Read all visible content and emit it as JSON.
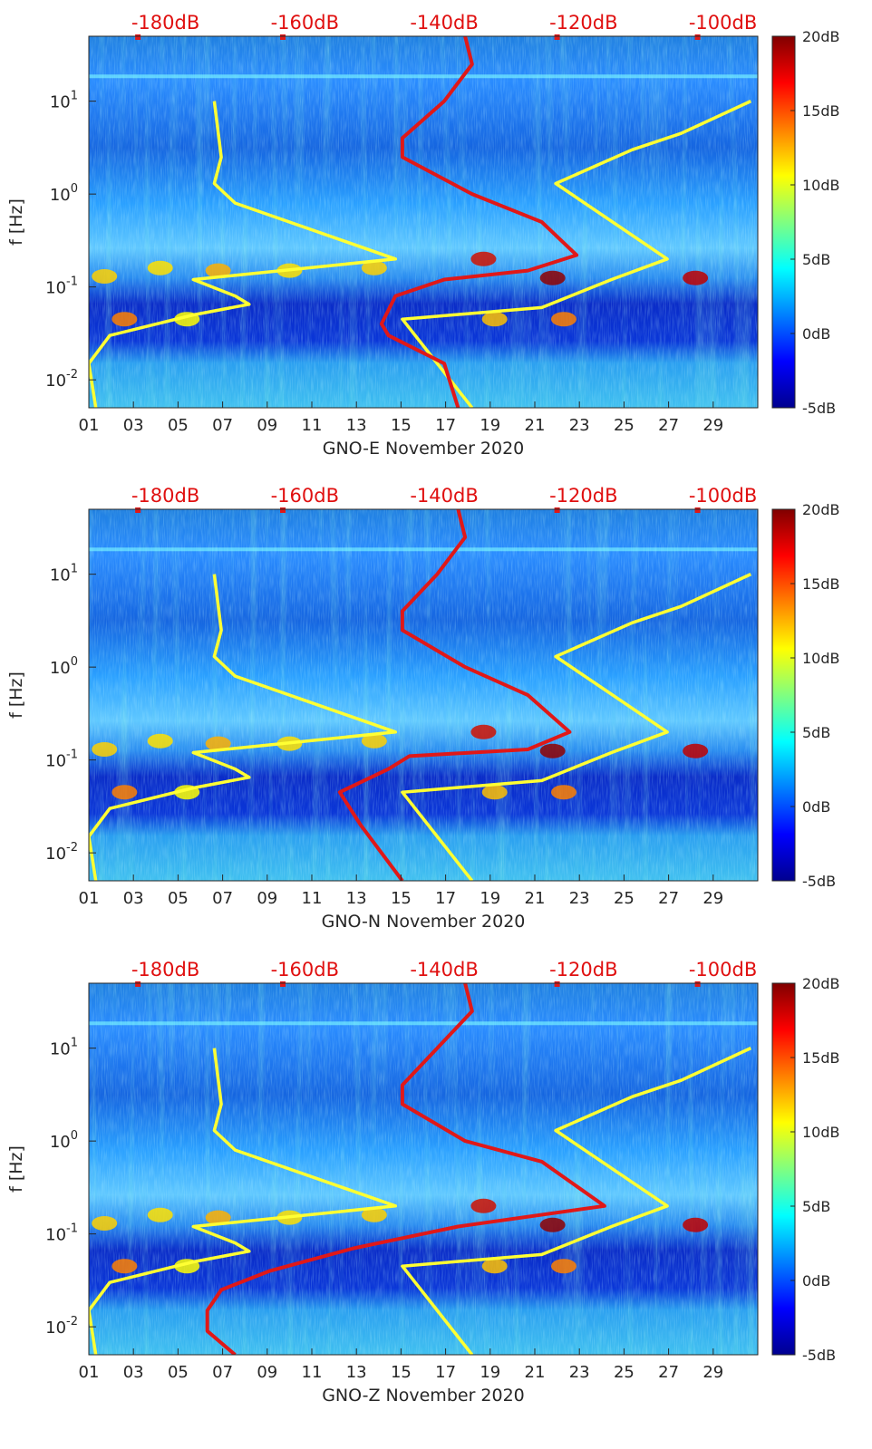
{
  "colormap": [
    "#00008f",
    "#0000ff",
    "#0080ff",
    "#00ffff",
    "#80ff80",
    "#ffff00",
    "#ff8000",
    "#ff0000",
    "#800000"
  ],
  "line_colors": {
    "yellow": "#ffff33",
    "red": "#e01818"
  },
  "chart_data": [
    {
      "type": "heatmap",
      "station": "GNO-E",
      "xlabel": "GNO-E November 2020",
      "ylabel": "f [Hz]",
      "x_ticks": [
        "01",
        "03",
        "05",
        "07",
        "09",
        "11",
        "13",
        "15",
        "17",
        "19",
        "21",
        "23",
        "25",
        "27",
        "29"
      ],
      "x_range_days": [
        1,
        31
      ],
      "y_scale": "log",
      "y_range_hz": [
        0.005,
        50
      ],
      "y_ticks": [
        {
          "base": "10",
          "exp": "-2",
          "value": 0.01
        },
        {
          "base": "10",
          "exp": "-1",
          "value": 0.1
        },
        {
          "base": "10",
          "exp": "0",
          "value": 1
        },
        {
          "base": "10",
          "exp": "1",
          "value": 10
        }
      ],
      "top_axis_labels": [
        "-180dB",
        "-160dB",
        "-140dB",
        "-120dB",
        "-100dB"
      ],
      "top_axis_db": [
        -180,
        -160,
        -140,
        -120,
        -100
      ],
      "top_axis_db_range": [
        -191,
        -95
      ],
      "colorbar_labels": [
        "20dB",
        "15dB",
        "10dB",
        "5dB",
        "0dB",
        "-5dB"
      ],
      "colorbar_range_db": [
        -5,
        20
      ],
      "series": [
        {
          "color": "yellow",
          "points": [
            [
              0.005,
              -190
            ],
            [
              0.015,
              -191
            ],
            [
              0.03,
              -188
            ],
            [
              0.05,
              -176
            ],
            [
              0.065,
              -168
            ],
            [
              0.08,
              -170
            ],
            [
              0.12,
              -176
            ],
            [
              0.2,
              -147
            ],
            [
              0.8,
              -170
            ],
            [
              1.3,
              -173
            ],
            [
              2.5,
              -172
            ],
            [
              10,
              -173
            ]
          ]
        },
        {
          "color": "yellow",
          "points": [
            [
              0.005,
              -136
            ],
            [
              0.045,
              -146
            ],
            [
              0.06,
              -126
            ],
            [
              0.12,
              -116
            ],
            [
              0.2,
              -108
            ],
            [
              1.3,
              -124
            ],
            [
              3.0,
              -113
            ],
            [
              4.5,
              -106
            ],
            [
              10,
              -96
            ]
          ]
        },
        {
          "color": "red",
          "points": [
            [
              0.005,
              -138
            ],
            [
              0.015,
              -140
            ],
            [
              0.03,
              -148
            ],
            [
              0.04,
              -149
            ],
            [
              0.08,
              -147
            ],
            [
              0.12,
              -140
            ],
            [
              0.15,
              -128
            ],
            [
              0.22,
              -121
            ],
            [
              0.5,
              -126
            ],
            [
              1.0,
              -136
            ],
            [
              2.5,
              -146
            ],
            [
              4.0,
              -146
            ],
            [
              10,
              -140
            ],
            [
              25,
              -136
            ],
            [
              50,
              -137
            ]
          ]
        }
      ]
    },
    {
      "type": "heatmap",
      "station": "GNO-N",
      "xlabel": "GNO-N November 2020",
      "ylabel": "f [Hz]",
      "x_ticks": [
        "01",
        "03",
        "05",
        "07",
        "09",
        "11",
        "13",
        "15",
        "17",
        "19",
        "21",
        "23",
        "25",
        "27",
        "29"
      ],
      "x_range_days": [
        1,
        31
      ],
      "y_scale": "log",
      "y_range_hz": [
        0.005,
        50
      ],
      "y_ticks": [
        {
          "base": "10",
          "exp": "-2",
          "value": 0.01
        },
        {
          "base": "10",
          "exp": "-1",
          "value": 0.1
        },
        {
          "base": "10",
          "exp": "0",
          "value": 1
        },
        {
          "base": "10",
          "exp": "1",
          "value": 10
        }
      ],
      "top_axis_labels": [
        "-180dB",
        "-160dB",
        "-140dB",
        "-120dB",
        "-100dB"
      ],
      "top_axis_db": [
        -180,
        -160,
        -140,
        -120,
        -100
      ],
      "top_axis_db_range": [
        -191,
        -95
      ],
      "colorbar_labels": [
        "20dB",
        "15dB",
        "10dB",
        "5dB",
        "0dB",
        "-5dB"
      ],
      "colorbar_range_db": [
        -5,
        20
      ],
      "series": [
        {
          "color": "yellow",
          "points": [
            [
              0.005,
              -190
            ],
            [
              0.015,
              -191
            ],
            [
              0.03,
              -188
            ],
            [
              0.05,
              -176
            ],
            [
              0.065,
              -168
            ],
            [
              0.08,
              -170
            ],
            [
              0.12,
              -176
            ],
            [
              0.2,
              -147
            ],
            [
              0.8,
              -170
            ],
            [
              1.3,
              -173
            ],
            [
              2.5,
              -172
            ],
            [
              10,
              -173
            ]
          ]
        },
        {
          "color": "yellow",
          "points": [
            [
              0.005,
              -136
            ],
            [
              0.045,
              -146
            ],
            [
              0.06,
              -126
            ],
            [
              0.12,
              -116
            ],
            [
              0.2,
              -108
            ],
            [
              1.3,
              -124
            ],
            [
              3.0,
              -113
            ],
            [
              4.5,
              -106
            ],
            [
              10,
              -96
            ]
          ]
        },
        {
          "color": "red",
          "points": [
            [
              0.005,
              -146
            ],
            [
              0.02,
              -152
            ],
            [
              0.045,
              -155
            ],
            [
              0.08,
              -148
            ],
            [
              0.11,
              -145
            ],
            [
              0.13,
              -128
            ],
            [
              0.2,
              -122
            ],
            [
              0.5,
              -128
            ],
            [
              1.0,
              -137
            ],
            [
              2.5,
              -146
            ],
            [
              4.0,
              -146
            ],
            [
              10,
              -141
            ],
            [
              25,
              -137
            ],
            [
              50,
              -138
            ]
          ]
        }
      ]
    },
    {
      "type": "heatmap",
      "station": "GNO-Z",
      "xlabel": "GNO-Z November 2020",
      "ylabel": "f [Hz]",
      "x_ticks": [
        "01",
        "03",
        "05",
        "07",
        "09",
        "11",
        "13",
        "15",
        "17",
        "19",
        "21",
        "23",
        "25",
        "27",
        "29"
      ],
      "x_range_days": [
        1,
        31
      ],
      "y_scale": "log",
      "y_range_hz": [
        0.005,
        50
      ],
      "y_ticks": [
        {
          "base": "10",
          "exp": "-2",
          "value": 0.01
        },
        {
          "base": "10",
          "exp": "-1",
          "value": 0.1
        },
        {
          "base": "10",
          "exp": "0",
          "value": 1
        },
        {
          "base": "10",
          "exp": "1",
          "value": 10
        }
      ],
      "top_axis_labels": [
        "-180dB",
        "-160dB",
        "-140dB",
        "-120dB",
        "-100dB"
      ],
      "top_axis_db": [
        -180,
        -160,
        -140,
        -120,
        -100
      ],
      "top_axis_db_range": [
        -191,
        -95
      ],
      "colorbar_labels": [
        "20dB",
        "15dB",
        "10dB",
        "5dB",
        "0dB",
        "-5dB"
      ],
      "colorbar_range_db": [
        -5,
        20
      ],
      "series": [
        {
          "color": "yellow",
          "points": [
            [
              0.005,
              -190
            ],
            [
              0.015,
              -191
            ],
            [
              0.03,
              -188
            ],
            [
              0.05,
              -176
            ],
            [
              0.065,
              -168
            ],
            [
              0.08,
              -170
            ],
            [
              0.12,
              -176
            ],
            [
              0.2,
              -147
            ],
            [
              0.8,
              -170
            ],
            [
              1.3,
              -173
            ],
            [
              2.5,
              -172
            ],
            [
              10,
              -173
            ]
          ]
        },
        {
          "color": "yellow",
          "points": [
            [
              0.005,
              -136
            ],
            [
              0.045,
              -146
            ],
            [
              0.06,
              -126
            ],
            [
              0.12,
              -116
            ],
            [
              0.2,
              -108
            ],
            [
              1.3,
              -124
            ],
            [
              3.0,
              -113
            ],
            [
              4.5,
              -106
            ],
            [
              10,
              -96
            ]
          ]
        },
        {
          "color": "red",
          "points": [
            [
              0.005,
              -170
            ],
            [
              0.009,
              -174
            ],
            [
              0.015,
              -174
            ],
            [
              0.025,
              -172
            ],
            [
              0.04,
              -165
            ],
            [
              0.07,
              -153
            ],
            [
              0.09,
              -146
            ],
            [
              0.12,
              -138
            ],
            [
              0.2,
              -117
            ],
            [
              0.6,
              -126
            ],
            [
              1.0,
              -137
            ],
            [
              2.5,
              -146
            ],
            [
              4.0,
              -146
            ],
            [
              10,
              -141
            ],
            [
              25,
              -136
            ],
            [
              50,
              -137
            ]
          ]
        }
      ]
    }
  ]
}
